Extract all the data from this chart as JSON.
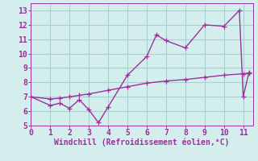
{
  "line1_x": [
    0,
    1,
    1.5,
    2,
    2.5,
    3,
    3.5,
    4,
    5,
    6,
    6.5,
    7,
    8,
    9,
    10,
    10.8,
    11,
    11.3
  ],
  "line1_y": [
    7.0,
    6.4,
    6.55,
    6.2,
    6.8,
    6.1,
    5.2,
    6.3,
    8.5,
    9.8,
    11.3,
    10.9,
    10.4,
    12.0,
    11.9,
    13.0,
    7.0,
    8.7
  ],
  "line2_x": [
    0,
    1,
    1.5,
    2,
    2.5,
    3,
    4,
    5,
    6,
    7,
    8,
    9,
    10,
    11,
    11.3
  ],
  "line2_y": [
    7.0,
    6.85,
    6.9,
    7.0,
    7.1,
    7.2,
    7.45,
    7.7,
    7.95,
    8.1,
    8.2,
    8.35,
    8.5,
    8.6,
    8.65
  ],
  "line_color": "#993399",
  "marker": "+",
  "markersize": 4,
  "linewidth": 1.0,
  "xlabel": "Windchill (Refroidissement éolien,°C)",
  "xlabel_fontsize": 7,
  "xlim": [
    0,
    11.5
  ],
  "ylim": [
    5,
    13.5
  ],
  "yticks": [
    5,
    6,
    7,
    8,
    9,
    10,
    11,
    12,
    13
  ],
  "xticks": [
    0,
    1,
    2,
    3,
    4,
    5,
    6,
    7,
    8,
    9,
    10,
    11
  ],
  "grid_color": "#aacfcf",
  "bg_color": "#d4eeee",
  "tick_color": "#993399",
  "tick_fontsize": 7,
  "spine_color": "#993399"
}
